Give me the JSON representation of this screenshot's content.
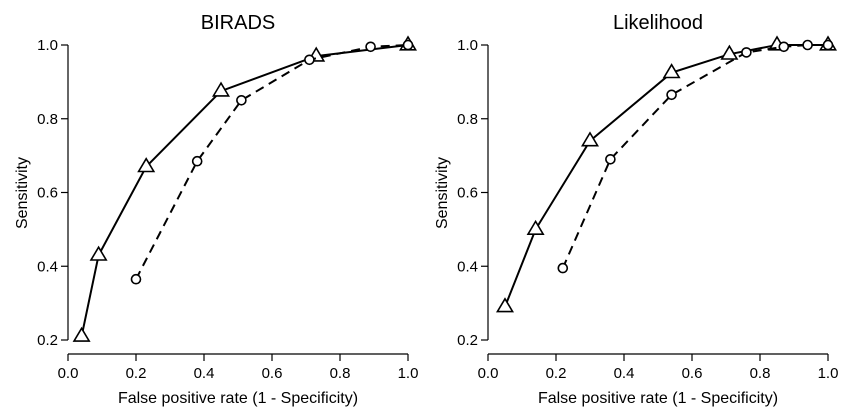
{
  "chart_data": [
    {
      "type": "line",
      "title": "BIRADS",
      "xlabel": "False positive rate (1 - Specificity)",
      "ylabel": "Sensitivity",
      "xlim": [
        0,
        1
      ],
      "ylim": [
        0.2,
        1.0
      ],
      "xticks": [
        "0.0",
        "0.2",
        "0.4",
        "0.6",
        "0.8",
        "1.0"
      ],
      "yticks": [
        "0.2",
        "0.4",
        "0.6",
        "0.8",
        "1.0"
      ],
      "grid": false,
      "series": [
        {
          "style": "solid",
          "marker": "triangle",
          "x": [
            0.04,
            0.09,
            0.23,
            0.45,
            0.73,
            1.0
          ],
          "y": [
            0.21,
            0.43,
            0.67,
            0.875,
            0.97,
            1.0
          ]
        },
        {
          "style": "dashed",
          "marker": "circle",
          "x": [
            0.2,
            0.38,
            0.51,
            0.71,
            0.89,
            1.0
          ],
          "y": [
            0.365,
            0.685,
            0.85,
            0.96,
            0.995,
            1.0
          ]
        }
      ]
    },
    {
      "type": "line",
      "title": "Likelihood",
      "xlabel": "False positive rate (1 - Specificity)",
      "ylabel": "Sensitivity",
      "xlim": [
        0,
        1
      ],
      "ylim": [
        0.2,
        1.0
      ],
      "xticks": [
        "0.0",
        "0.2",
        "0.4",
        "0.6",
        "0.8",
        "1.0"
      ],
      "yticks": [
        "0.2",
        "0.4",
        "0.6",
        "0.8",
        "1.0"
      ],
      "grid": false,
      "series": [
        {
          "style": "solid",
          "marker": "triangle",
          "x": [
            0.05,
            0.14,
            0.3,
            0.54,
            0.71,
            0.85,
            1.0
          ],
          "y": [
            0.29,
            0.5,
            0.74,
            0.925,
            0.975,
            1.0,
            1.0
          ]
        },
        {
          "style": "dashed",
          "marker": "circle",
          "x": [
            0.22,
            0.36,
            0.54,
            0.76,
            0.87,
            0.94,
            1.0
          ],
          "y": [
            0.395,
            0.69,
            0.865,
            0.98,
            0.995,
            1.0,
            1.0
          ]
        }
      ]
    }
  ]
}
